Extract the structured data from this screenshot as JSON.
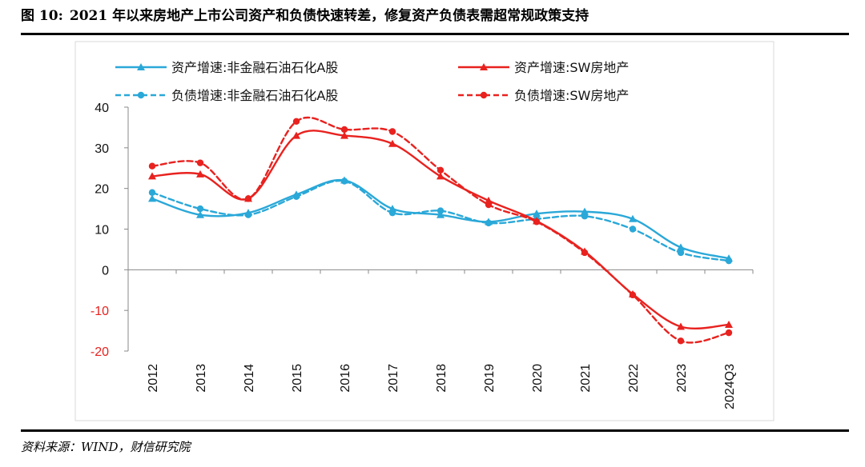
{
  "figure": {
    "number": "图 10:",
    "title": "2021 年以来房地产上市公司资产和负债快速转差，修复资产负债表需超常规政策支持",
    "source": "资料来源：WIND，财信研究院"
  },
  "colors": {
    "blue": "#2aa8d8",
    "red": "#e8221f",
    "axis": "#888888",
    "neg_tick": "#e8221f",
    "frame": "#d9d9d9"
  },
  "chart_data": {
    "type": "line",
    "categories": [
      "2012",
      "2013",
      "2014",
      "2015",
      "2016",
      "2017",
      "2018",
      "2019",
      "2020",
      "2021",
      "2022",
      "2023",
      "2024Q3"
    ],
    "ylim": [
      -20,
      40
    ],
    "yticks": [
      40,
      30,
      20,
      10,
      0,
      -10,
      -20
    ],
    "xlabel": "",
    "ylabel": "",
    "series": [
      {
        "name": "资产增速:非金融石油石化A股",
        "color": "#2aa8d8",
        "style": "solid",
        "marker": "triangle",
        "values": [
          17.5,
          13.5,
          14.0,
          18.5,
          22.0,
          15.0,
          13.5,
          11.8,
          13.8,
          14.3,
          12.5,
          5.5,
          2.8
        ]
      },
      {
        "name": "资产增速:SW房地产",
        "color": "#e8221f",
        "style": "solid",
        "marker": "triangle",
        "values": [
          23.0,
          23.5,
          17.5,
          33.0,
          33.0,
          31.0,
          23.0,
          17.0,
          12.0,
          4.5,
          -6.0,
          -14.0,
          -13.5
        ]
      },
      {
        "name": "负债增速:非金融石油石化A股",
        "color": "#2aa8d8",
        "style": "dashed",
        "marker": "circle",
        "values": [
          19.0,
          15.0,
          13.5,
          18.0,
          21.8,
          14.0,
          14.5,
          11.5,
          12.5,
          13.2,
          10.0,
          4.2,
          2.2
        ]
      },
      {
        "name": "负债增速:SW房地产",
        "color": "#e8221f",
        "style": "dashed",
        "marker": "circle",
        "values": [
          25.5,
          26.3,
          17.5,
          36.5,
          34.5,
          34.0,
          24.5,
          16.0,
          11.8,
          4.2,
          -6.2,
          -17.5,
          -15.5
        ]
      }
    ],
    "legend_order": [
      0,
      1,
      2,
      3
    ],
    "legend_position": "top"
  }
}
